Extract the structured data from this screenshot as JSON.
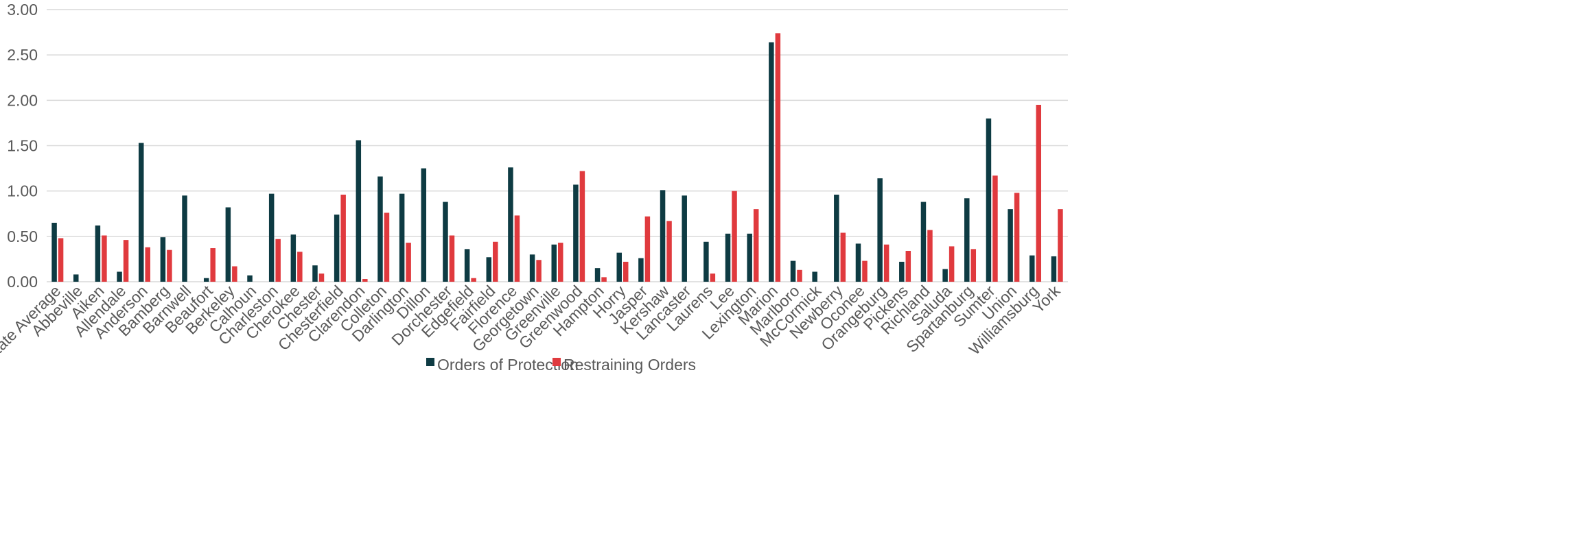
{
  "chart_data": {
    "type": "bar",
    "categories": [
      "State Average",
      "Abbeville",
      "Aiken",
      "Allendale",
      "Anderson",
      "Bamberg",
      "Barnwell",
      "Beaufort",
      "Berkeley",
      "Calhoun",
      "Charleston",
      "Cherokee",
      "Chester",
      "Chesterfield",
      "Clarendon",
      "Colleton",
      "Darlington",
      "Dillon",
      "Dorchester",
      "Edgefield",
      "Fairfield",
      "Florence",
      "Georgetown",
      "Greenville",
      "Greenwood",
      "Hampton",
      "Horry",
      "Jasper",
      "Kershaw",
      "Lancaster",
      "Laurens",
      "Lee",
      "Lexington",
      "Marion",
      "Marlboro",
      "McCormick",
      "Newberry",
      "Oconee",
      "Orangeburg",
      "Pickens",
      "Richland",
      "Saluda",
      "Spartanburg",
      "Sumter",
      "Union",
      "Williamsburg",
      "York"
    ],
    "series": [
      {
        "name": "Orders of Protection",
        "color": "#0e3b43",
        "values": [
          0.65,
          0.08,
          0.62,
          0.11,
          1.53,
          0.49,
          0.95,
          0.04,
          0.82,
          0.07,
          0.97,
          0.52,
          0.18,
          0.74,
          1.56,
          1.16,
          0.97,
          1.25,
          0.88,
          0.36,
          0.27,
          1.26,
          0.3,
          0.41,
          1.07,
          0.15,
          0.32,
          0.26,
          1.01,
          0.95,
          0.44,
          0.53,
          0.53,
          2.64,
          0.23,
          0.11,
          0.96,
          0.42,
          1.14,
          0.22,
          0.88,
          0.14,
          0.92,
          1.8,
          0.8,
          0.29,
          0.28
        ]
      },
      {
        "name": "Restraining Orders",
        "color": "#e03a3e",
        "values": [
          0.48,
          0,
          0.51,
          0.46,
          0.38,
          0.35,
          0,
          0.37,
          0.17,
          0,
          0.47,
          0.33,
          0.09,
          0.96,
          0.03,
          0.76,
          0.43,
          0,
          0.51,
          0.04,
          0.44,
          0.73,
          0.24,
          0.43,
          1.22,
          0.05,
          0.22,
          0.72,
          0.67,
          0,
          0.09,
          1.0,
          0.8,
          2.74,
          0.13,
          0,
          0.54,
          0.23,
          0.41,
          0.34,
          0.57,
          0.39,
          0.36,
          1.17,
          0.98,
          1.95,
          0.8
        ]
      }
    ],
    "yticks": [
      "0.00",
      "0.50",
      "1.00",
      "1.50",
      "2.00",
      "2.50",
      "3.00"
    ],
    "ylim": [
      0,
      3
    ],
    "grid": true,
    "legend_position": "bottom",
    "gridline_color": "#d9d9d9"
  }
}
